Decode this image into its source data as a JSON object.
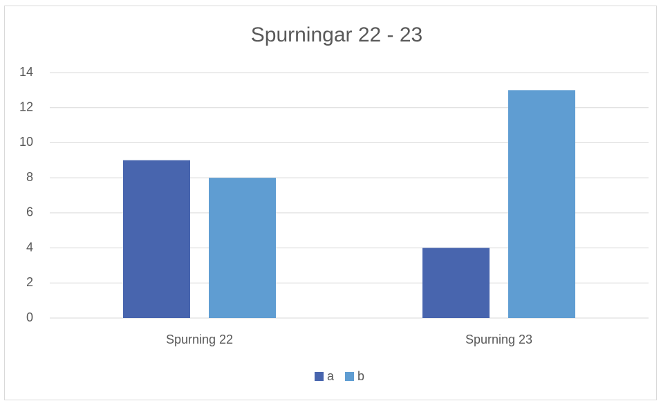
{
  "chart_data": {
    "type": "bar",
    "title": "Spurningar 22 - 23",
    "categories": [
      "Spurning 22",
      "Spurning 23"
    ],
    "series": [
      {
        "name": "a",
        "color": "#4865ae",
        "values": [
          9,
          4
        ]
      },
      {
        "name": "b",
        "color": "#5f9dd2",
        "values": [
          8,
          13
        ]
      }
    ],
    "ylim": [
      0,
      14
    ],
    "yticks": [
      0,
      2,
      4,
      6,
      8,
      10,
      12,
      14
    ],
    "grid": true,
    "legend": "bottom"
  }
}
